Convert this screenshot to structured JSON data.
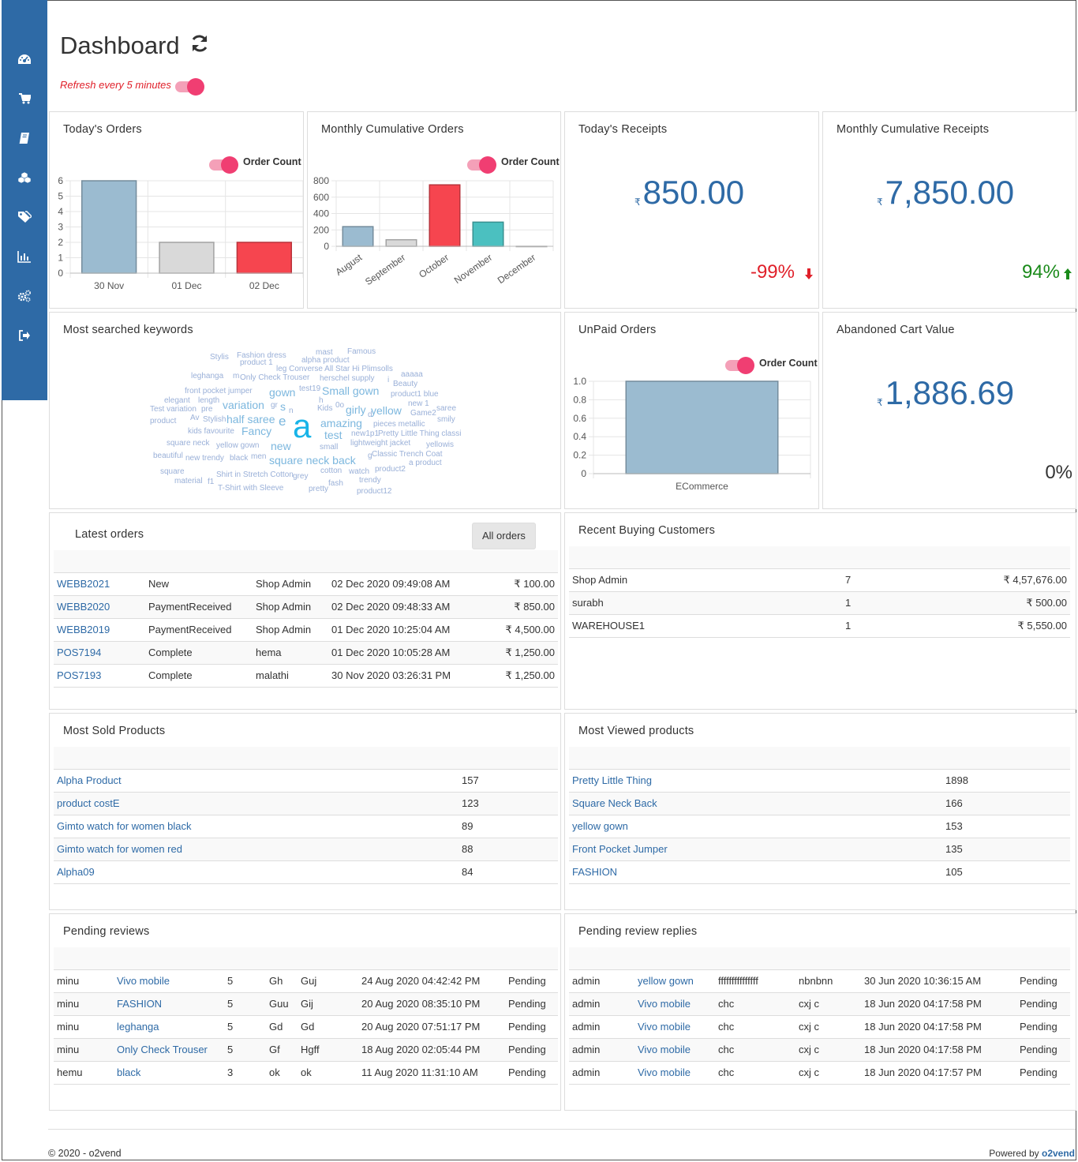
{
  "page": {
    "title": "Dashboard",
    "refresh_label": "Refresh every 5 minutes"
  },
  "sidebar": {
    "items": [
      "dashboard-icon",
      "cart-icon",
      "book-icon",
      "cubes-icon",
      "tags-icon",
      "bar-chart-icon",
      "cogs-icon",
      "sign-out-icon"
    ]
  },
  "todays_orders": {
    "title": "Today's Orders",
    "legend": "Order Count"
  },
  "monthly_orders": {
    "title": "Monthly Cumulative Orders",
    "legend": "Order Count"
  },
  "todays_receipts": {
    "title": "Today's Receipts",
    "currency": "₹",
    "value": "850.00",
    "change": "-99%",
    "change_color": "#e0202a"
  },
  "monthly_receipts": {
    "title": "Monthly Cumulative Receipts",
    "currency": "₹",
    "value": "7,850.00",
    "change": "94%",
    "change_color": "#1a8a1a"
  },
  "keywords": {
    "title": "Most searched keywords"
  },
  "unpaid": {
    "title": "UnPaid Orders",
    "legend": "Order Count"
  },
  "abandoned": {
    "title": "Abandoned Cart Value",
    "currency": "₹",
    "value": "1,886.69",
    "change": "0%"
  },
  "chart_data": [
    {
      "type": "bar",
      "title": "Today's Orders",
      "categories": [
        "30 Nov",
        "01 Dec",
        "02 Dec"
      ],
      "series": [
        {
          "name": "Order Count",
          "values": [
            6,
            2,
            2
          ]
        }
      ],
      "colors": [
        "#9bbbd0",
        "#d9d9d9",
        "#f6454f"
      ],
      "ylim": [
        0,
        6
      ],
      "yticks": [
        0,
        1,
        2,
        3,
        4,
        5,
        6
      ]
    },
    {
      "type": "bar",
      "title": "Monthly Cumulative Orders",
      "categories": [
        "August",
        "September",
        "October",
        "November",
        "December"
      ],
      "series": [
        {
          "name": "Order Count",
          "values": [
            240,
            80,
            750,
            295,
            0
          ]
        }
      ],
      "colors": [
        "#9bbbd0",
        "#d9d9d9",
        "#f6454f",
        "#4bc0c0",
        "#e0e0e0"
      ],
      "ylim": [
        0,
        800
      ],
      "yticks": [
        0,
        200,
        400,
        600,
        800
      ]
    },
    {
      "type": "bar",
      "title": "UnPaid Orders",
      "categories": [
        "ECommerce"
      ],
      "series": [
        {
          "name": "Order Count",
          "values": [
            1.0
          ]
        }
      ],
      "colors": [
        "#9bbbd0"
      ],
      "ylim": [
        0,
        1.0
      ],
      "yticks": [
        "0",
        "0.2",
        "0.4",
        "0.6",
        "0.8",
        "1.0"
      ]
    }
  ],
  "wordcloud": [
    "Stylis",
    "Fashion dress",
    "mast",
    "Famous",
    "product 1",
    "alpha product",
    "leg Converse All Star Hi Plimsolls",
    "leghanga",
    "m",
    "Only Check Trouser",
    "herschel supply",
    "aaaaa",
    "i",
    "Beauty",
    "front pocket jumper",
    "gown",
    "test19",
    "Small gown",
    "product1 blue",
    "elegant",
    "length",
    "h",
    "variation",
    "gr",
    "s",
    "new 1",
    "Test variation",
    "pre",
    "Kids",
    "0o",
    "girly",
    "yellow",
    "saree",
    "product",
    "Av",
    "Stylish",
    "half saree",
    "n",
    "d",
    "Game2",
    "smily",
    "kids favourite",
    "Fancy",
    "e",
    "a",
    "amazing",
    "pieces metallic",
    "test",
    "new1p1",
    "Pretty Little Thing classi",
    "square neck",
    "yellow gown",
    "new",
    "small",
    "lightweight jacket",
    "yellowis",
    "beautiful",
    "new trendy",
    "black",
    "men",
    "square neck back",
    "g",
    "Classic Trench Coat",
    "a product",
    "square",
    "material",
    "f1",
    "Shirt in Stretch Cotton",
    "grey",
    "cotton",
    "watch",
    "product2",
    "T-Shirt with Sleeve",
    "pretty",
    "fash",
    "trendy",
    "product12"
  ],
  "latest_orders": {
    "title": "Latest orders",
    "button": "All orders",
    "rows": [
      {
        "id": "WEBB2021",
        "status": "New",
        "by": "Shop Admin",
        "date": "02 Dec 2020 09:49:08 AM",
        "amount": "₹ 100.00"
      },
      {
        "id": "WEBB2020",
        "status": "PaymentReceived",
        "by": "Shop Admin",
        "date": "02 Dec 2020 09:48:33 AM",
        "amount": "₹ 850.00"
      },
      {
        "id": "WEBB2019",
        "status": "PaymentReceived",
        "by": "Shop Admin",
        "date": "01 Dec 2020 10:25:04 AM",
        "amount": "₹ 4,500.00"
      },
      {
        "id": "POS7194",
        "status": "Complete",
        "by": "hema",
        "date": "01 Dec 2020 10:05:28 AM",
        "amount": "₹ 1,250.00"
      },
      {
        "id": "POS7193",
        "status": "Complete",
        "by": "malathi",
        "date": "30 Nov 2020 03:26:31 PM",
        "amount": "₹ 1,250.00"
      }
    ]
  },
  "recent_customers": {
    "title": "Recent Buying Customers",
    "rows": [
      {
        "name": "Shop Admin",
        "count": "7",
        "amount": "₹ 4,57,676.00"
      },
      {
        "name": "surabh",
        "count": "1",
        "amount": "₹ 500.00"
      },
      {
        "name": "WAREHOUSE1",
        "count": "1",
        "amount": "₹ 5,550.00"
      }
    ]
  },
  "most_sold": {
    "title": "Most Sold Products",
    "rows": [
      {
        "name": "Alpha Product",
        "count": "157"
      },
      {
        "name": "product costE",
        "count": "123"
      },
      {
        "name": "Gimto watch for women black",
        "count": "89"
      },
      {
        "name": "Gimto watch for women red",
        "count": "88"
      },
      {
        "name": "Alpha09",
        "count": "84"
      }
    ]
  },
  "most_viewed": {
    "title": "Most Viewed products",
    "rows": [
      {
        "name": "Pretty Little Thing",
        "count": "1898"
      },
      {
        "name": "Square Neck Back",
        "count": "166"
      },
      {
        "name": "yellow gown",
        "count": "153"
      },
      {
        "name": "Front Pocket Jumper",
        "count": "135"
      },
      {
        "name": "FASHION",
        "count": "105"
      }
    ]
  },
  "pending_reviews": {
    "title": "Pending reviews",
    "rows": [
      {
        "user": "minu",
        "product": "Vivo mobile",
        "rating": "5",
        "c1": "Gh",
        "c2": "Guj",
        "date": "24 Aug 2020 04:42:42 PM",
        "status": "Pending"
      },
      {
        "user": "minu",
        "product": "FASHION",
        "rating": "5",
        "c1": "Guu",
        "c2": "Gij",
        "date": "20 Aug 2020 08:35:10 PM",
        "status": "Pending"
      },
      {
        "user": "minu",
        "product": "leghanga",
        "rating": "5",
        "c1": "Gd",
        "c2": "Gd",
        "date": "20 Aug 2020 07:51:17 PM",
        "status": "Pending"
      },
      {
        "user": "minu",
        "product": "Only Check Trouser",
        "rating": "5",
        "c1": "Gf",
        "c2": "Hgff",
        "date": "18 Aug 2020 02:05:44 PM",
        "status": "Pending"
      },
      {
        "user": "hemu",
        "product": "black",
        "rating": "3",
        "c1": "ok",
        "c2": "ok",
        "date": "11 Aug 2020 11:31:10 AM",
        "status": "Pending"
      }
    ]
  },
  "pending_replies": {
    "title": "Pending review replies",
    "rows": [
      {
        "user": "admin",
        "product": "yellow gown",
        "c1": "fffffffffffffff",
        "c2": "nbnbnn",
        "date": "30 Jun 2020 10:36:15 AM",
        "status": "Pending"
      },
      {
        "user": "admin",
        "product": "Vivo mobile",
        "c1": "chc",
        "c2": "cxj c",
        "date": "18 Jun 2020 04:17:58 PM",
        "status": "Pending"
      },
      {
        "user": "admin",
        "product": "Vivo mobile",
        "c1": "chc",
        "c2": "cxj c",
        "date": "18 Jun 2020 04:17:58 PM",
        "status": "Pending"
      },
      {
        "user": "admin",
        "product": "Vivo mobile",
        "c1": "chc",
        "c2": "cxj c",
        "date": "18 Jun 2020 04:17:58 PM",
        "status": "Pending"
      },
      {
        "user": "admin",
        "product": "Vivo mobile",
        "c1": "chc",
        "c2": "cxj c",
        "date": "18 Jun 2020 04:17:57 PM",
        "status": "Pending"
      }
    ]
  },
  "footer": {
    "copyright": "© 2020 - o2vend",
    "powered_prefix": "Powered by ",
    "powered_brand": "o2vend"
  }
}
